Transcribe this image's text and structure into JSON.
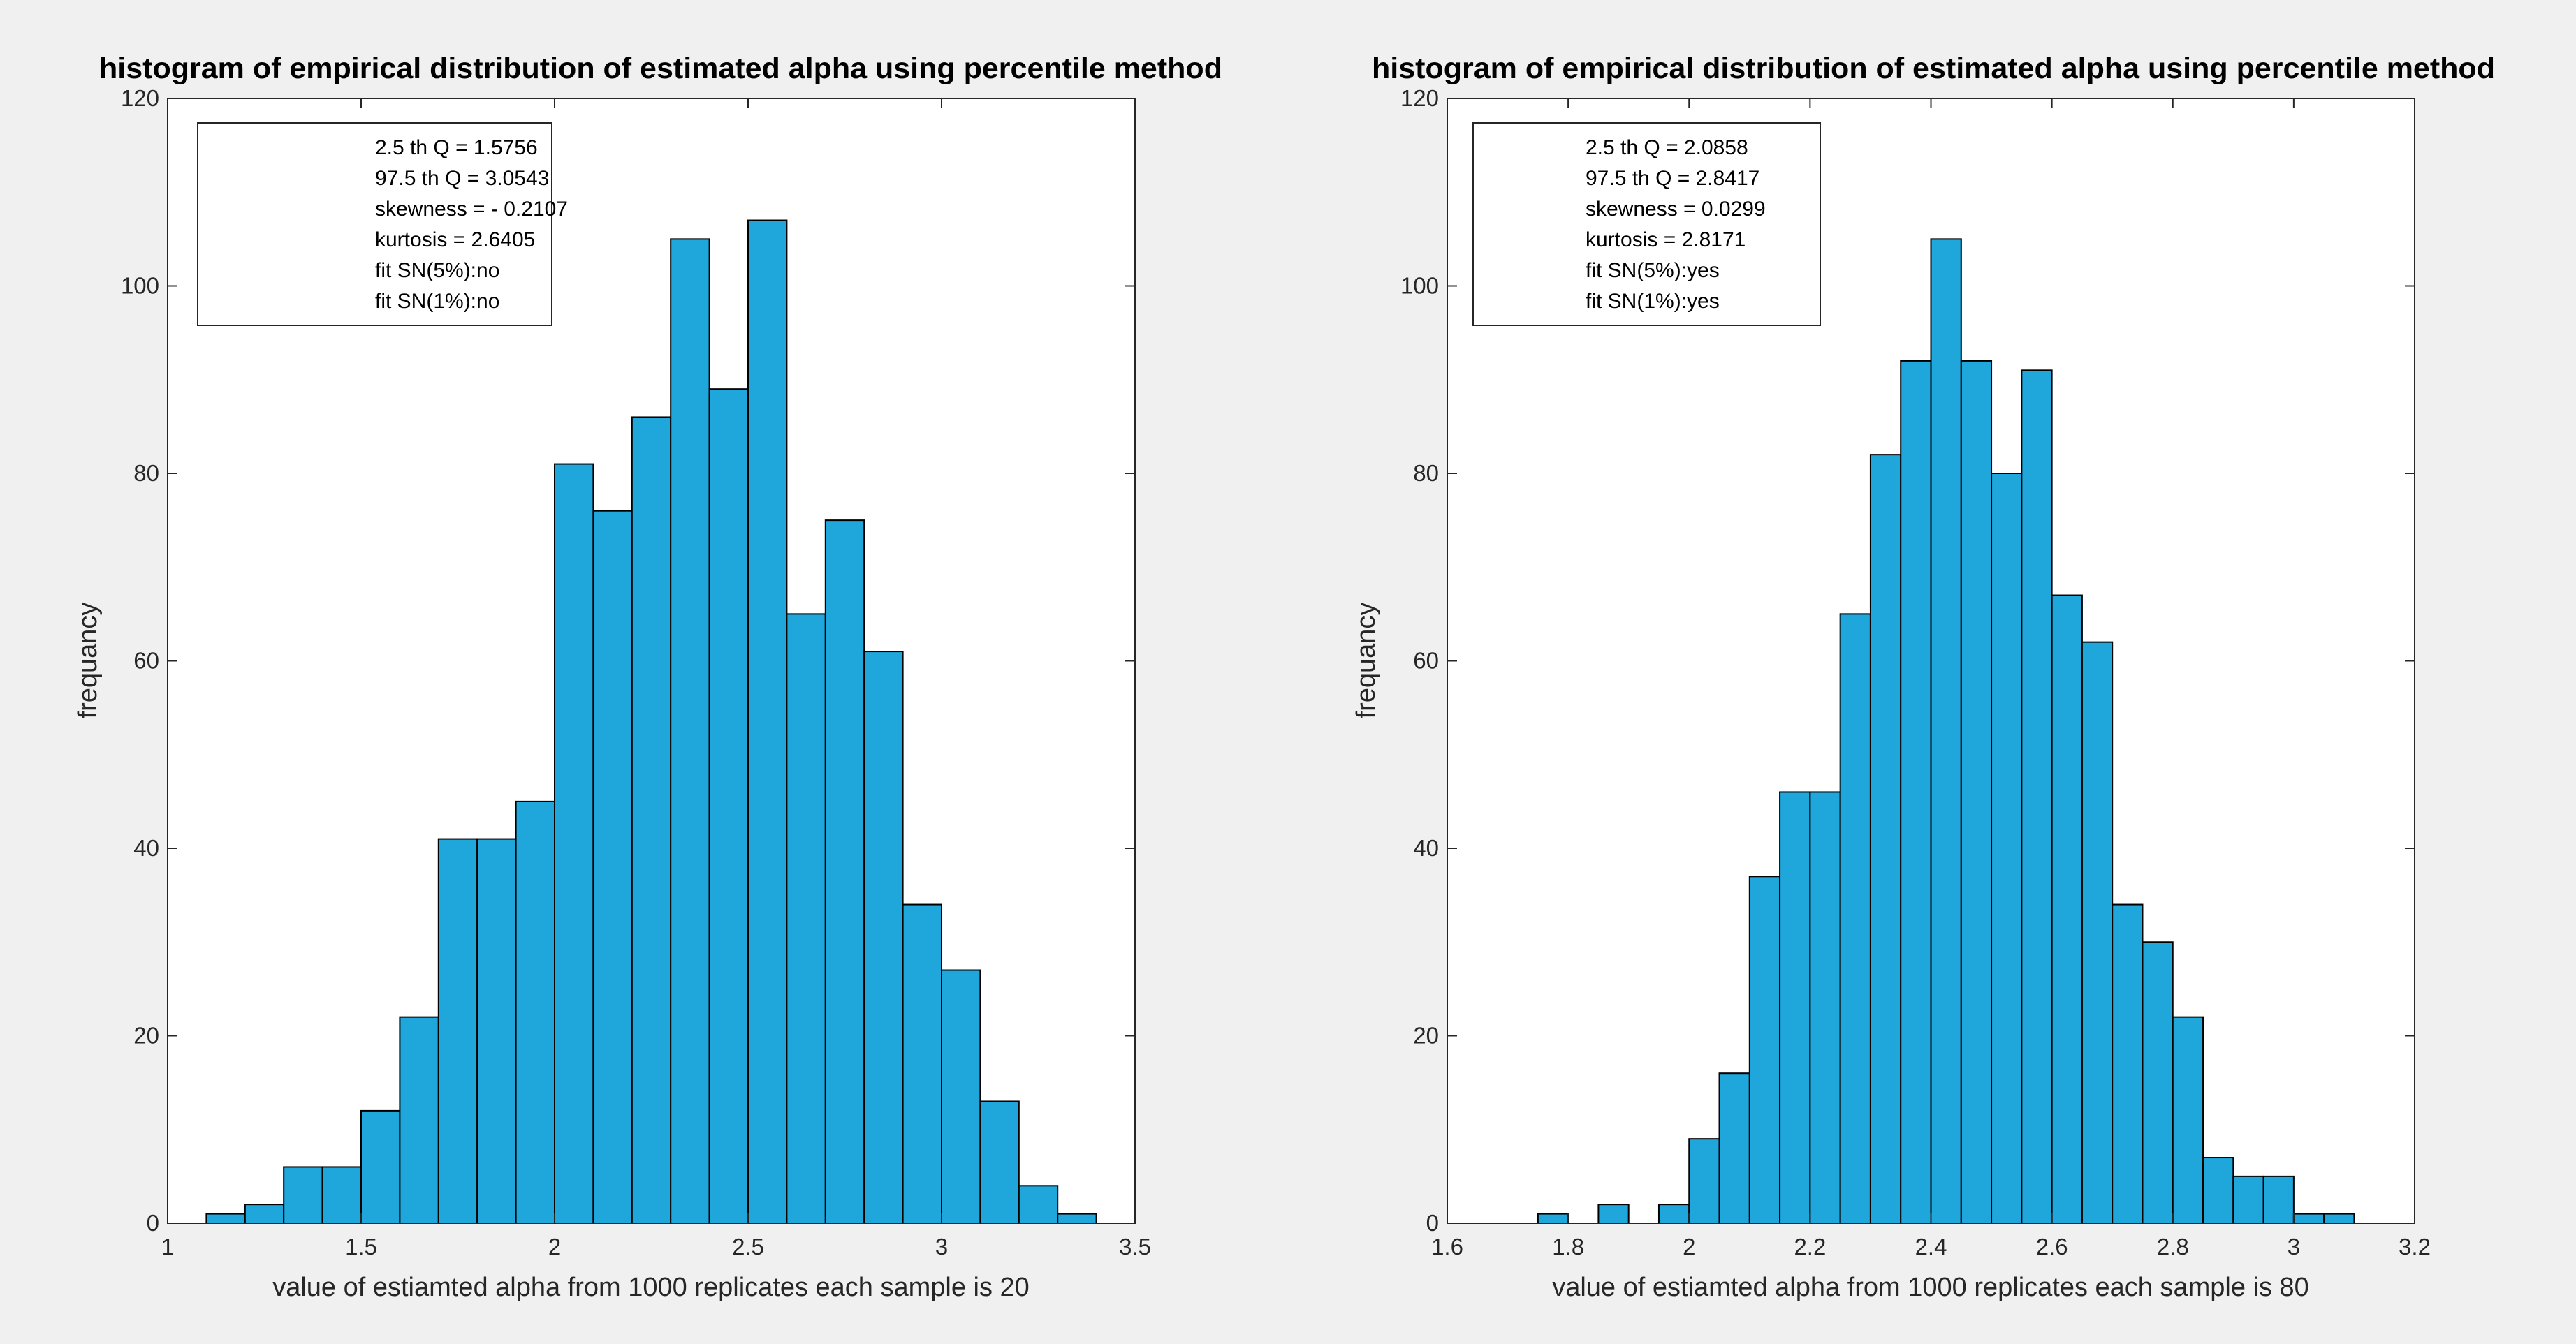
{
  "figure": {
    "background": "#f0f0f0"
  },
  "chart_data": [
    {
      "type": "bar",
      "title": "histogram of empirical distribution of estimated alpha using percentile method",
      "xlabel": "value of estiamted alpha from 1000 replicates each sample is 20",
      "ylabel": "frequancy",
      "xlim": [
        1,
        3.5
      ],
      "ylim": [
        0,
        120
      ],
      "xticks": [
        1,
        1.5,
        2,
        2.5,
        3,
        3.5
      ],
      "xtick_labels": [
        "1",
        "1.5",
        "2",
        "2.5",
        "3",
        "3.5"
      ],
      "yticks": [
        0,
        20,
        40,
        60,
        80,
        100,
        120
      ],
      "ytick_labels": [
        "0",
        "20",
        "40",
        "60",
        "80",
        "100",
        "120"
      ],
      "bin_edges": [
        1.1,
        1.2,
        1.3,
        1.4,
        1.5,
        1.6,
        1.7,
        1.8,
        1.9,
        2.0,
        2.1,
        2.2,
        2.3,
        2.4,
        2.5,
        2.6,
        2.7,
        2.8,
        2.9,
        3.0,
        3.1,
        3.2,
        3.3,
        3.4
      ],
      "values": [
        1,
        2,
        6,
        6,
        12,
        22,
        41,
        41,
        45,
        81,
        76,
        86,
        105,
        89,
        107,
        65,
        75,
        61,
        34,
        27,
        13,
        4,
        1
      ],
      "bar_color": "#1fa6db",
      "edge_color": "#000000",
      "legend_lines": [
        "2.5 th Q = 1.5756",
        "97.5 th Q = 3.0543",
        "skewness = - 0.2107",
        "kurtosis = 2.6405",
        "fit SN(5%):no",
        "fit SN(1%):no"
      ],
      "legend_position": "top-left"
    },
    {
      "type": "bar",
      "title": "histogram of empirical distribution of estimated alpha using percentile method",
      "xlabel": "value of estiamted alpha from 1000 replicates each sample is 80",
      "ylabel": "frequancy",
      "xlim": [
        1.6,
        3.2
      ],
      "ylim": [
        0,
        120
      ],
      "xticks": [
        1.6,
        1.8,
        2,
        2.2,
        2.4,
        2.6,
        2.8,
        3,
        3.2
      ],
      "xtick_labels": [
        "1.6",
        "1.8",
        "2",
        "2.2",
        "2.4",
        "2.6",
        "2.8",
        "3",
        "3.2"
      ],
      "yticks": [
        0,
        20,
        40,
        60,
        80,
        100,
        120
      ],
      "ytick_labels": [
        "0",
        "20",
        "40",
        "60",
        "80",
        "100",
        "120"
      ],
      "bin_edges": [
        1.75,
        1.8,
        1.85,
        1.9,
        1.95,
        2.0,
        2.05,
        2.1,
        2.15,
        2.2,
        2.25,
        2.3,
        2.35,
        2.4,
        2.45,
        2.5,
        2.55,
        2.6,
        2.65,
        2.7,
        2.75,
        2.8,
        2.85,
        2.9,
        2.95,
        3.0,
        3.05,
        3.1
      ],
      "values": [
        1,
        0,
        2,
        0,
        2,
        9,
        16,
        37,
        46,
        46,
        65,
        82,
        92,
        105,
        92,
        80,
        91,
        67,
        62,
        34,
        30,
        22,
        7,
        5,
        5,
        1,
        1
      ],
      "bar_color": "#1fa6db",
      "edge_color": "#000000",
      "legend_lines": [
        "2.5 th Q = 2.0858",
        "97.5 th Q = 2.8417",
        "skewness =  0.0299",
        "kurtosis = 2.8171",
        "fit SN(5%):yes",
        "fit SN(1%):yes"
      ],
      "legend_position": "top-left"
    }
  ]
}
